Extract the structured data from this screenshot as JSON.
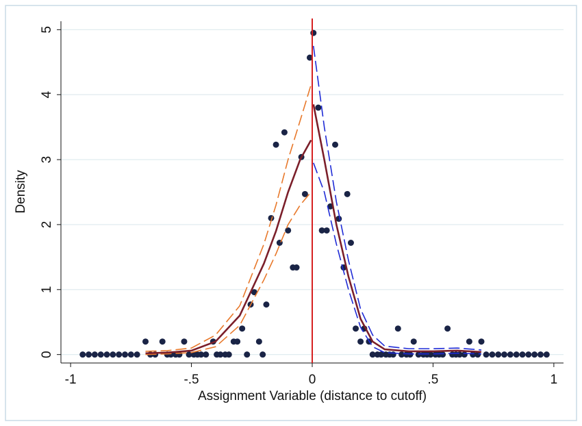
{
  "chart_data": {
    "type": "scatter",
    "xlabel": "Assignment Variable (distance to cutoff)",
    "ylabel": "Density",
    "xlim": [
      -1.04,
      1.04
    ],
    "ylim": [
      -0.13,
      5.13
    ],
    "xticks": [
      -1,
      {
        "value": -0.5,
        "label": "-.5"
      },
      0,
      {
        "value": 0.5,
        "label": ".5"
      },
      1
    ],
    "yticks": [
      0,
      1,
      2,
      3,
      4,
      5
    ],
    "grid": true,
    "cutoff": 0,
    "cutoff_color": "#d62020",
    "points": {
      "color": "#1a2446",
      "x": [
        -0.95,
        -0.925,
        -0.9,
        -0.875,
        -0.85,
        -0.825,
        -0.8,
        -0.775,
        -0.75,
        -0.725,
        -0.69,
        -0.67,
        -0.65,
        -0.62,
        -0.6,
        -0.585,
        -0.565,
        -0.55,
        -0.53,
        -0.51,
        -0.49,
        -0.475,
        -0.46,
        -0.44,
        -0.41,
        -0.395,
        -0.38,
        -0.36,
        -0.345,
        -0.325,
        -0.31,
        -0.29,
        -0.27,
        -0.255,
        -0.24,
        -0.22,
        -0.205,
        -0.19,
        -0.17,
        -0.15,
        -0.135,
        -0.115,
        -0.1,
        -0.08,
        -0.065,
        -0.045,
        -0.03,
        -0.01,
        0.005,
        0.025,
        0.04,
        0.06,
        0.075,
        0.095,
        0.11,
        0.13,
        0.145,
        0.16,
        0.18,
        0.2,
        0.215,
        0.235,
        0.25,
        0.27,
        0.285,
        0.305,
        0.32,
        0.335,
        0.355,
        0.37,
        0.39,
        0.405,
        0.42,
        0.44,
        0.46,
        0.475,
        0.49,
        0.51,
        0.525,
        0.54,
        0.56,
        0.58,
        0.595,
        0.61,
        0.63,
        0.65,
        0.665,
        0.685,
        0.7,
        0.72,
        0.745,
        0.77,
        0.795,
        0.82,
        0.845,
        0.87,
        0.895,
        0.92,
        0.945,
        0.97
      ],
      "values": [
        0,
        0,
        0,
        0,
        0,
        0,
        0,
        0,
        0,
        0,
        0.2,
        0,
        0,
        0.2,
        0,
        0,
        0,
        0,
        0.2,
        0,
        0,
        0,
        0,
        0,
        0.2,
        0,
        0,
        0,
        0,
        0.2,
        0.2,
        0.4,
        0,
        0.77,
        0.96,
        0.2,
        0,
        0.77,
        2.1,
        3.23,
        1.72,
        3.42,
        1.91,
        1.34,
        1.34,
        3.04,
        2.47,
        4.57,
        4.95,
        3.8,
        1.91,
        1.91,
        2.28,
        3.23,
        2.09,
        1.34,
        2.47,
        1.72,
        0.4,
        0.2,
        0.4,
        0.2,
        0,
        0,
        0,
        0,
        0,
        0,
        0.4,
        0,
        0,
        0,
        0.2,
        0,
        0,
        0,
        0,
        0,
        0,
        0,
        0.4,
        0,
        0,
        0,
        0,
        0.2,
        0,
        0,
        0.2,
        0,
        0,
        0,
        0,
        0,
        0,
        0,
        0,
        0,
        0,
        0
      ]
    },
    "lines": [
      {
        "color": "#e8782a",
        "dashed": true,
        "x": [
          -0.69,
          -0.6,
          -0.5,
          -0.4,
          -0.3,
          -0.2,
          -0.15,
          -0.1,
          -0.05,
          -0.005
        ],
        "values": [
          0.05,
          0.06,
          0.1,
          0.3,
          0.75,
          1.7,
          2.3,
          3.0,
          3.6,
          4.15
        ]
      },
      {
        "color": "#e8782a",
        "dashed": true,
        "x": [
          -0.69,
          -0.6,
          -0.5,
          -0.4,
          -0.3,
          -0.2,
          -0.15,
          -0.1,
          -0.05,
          -0.005
        ],
        "values": [
          0,
          0.01,
          0.03,
          0.12,
          0.45,
          1.15,
          1.55,
          2.0,
          2.3,
          2.5
        ]
      },
      {
        "color": "#7b1f2a",
        "dashed": false,
        "x": [
          -0.69,
          -0.6,
          -0.5,
          -0.4,
          -0.3,
          -0.2,
          -0.15,
          -0.1,
          -0.05,
          -0.005
        ],
        "values": [
          0.02,
          0.03,
          0.06,
          0.2,
          0.6,
          1.4,
          1.9,
          2.5,
          3.0,
          3.3
        ]
      },
      {
        "color": "#1f2bd6",
        "dashed": true,
        "x": [
          0.005,
          0.05,
          0.1,
          0.15,
          0.2,
          0.25,
          0.3,
          0.4,
          0.5,
          0.6,
          0.7
        ],
        "values": [
          4.75,
          3.5,
          2.35,
          1.45,
          0.7,
          0.3,
          0.13,
          0.09,
          0.09,
          0.1,
          0.07
        ]
      },
      {
        "color": "#1f2bd6",
        "dashed": true,
        "x": [
          0.005,
          0.05,
          0.1,
          0.15,
          0.2,
          0.25,
          0.3,
          0.4,
          0.5,
          0.6,
          0.7
        ],
        "values": [
          2.95,
          2.5,
          1.7,
          1.0,
          0.42,
          0.12,
          0.03,
          0.01,
          0.01,
          0.02,
          0.01
        ]
      },
      {
        "color": "#7b1f2a",
        "dashed": false,
        "x": [
          0.005,
          0.05,
          0.1,
          0.15,
          0.2,
          0.25,
          0.3,
          0.4,
          0.5,
          0.6,
          0.7
        ],
        "values": [
          3.85,
          3.0,
          2.0,
          1.2,
          0.55,
          0.2,
          0.08,
          0.05,
          0.05,
          0.06,
          0.04
        ]
      }
    ]
  }
}
